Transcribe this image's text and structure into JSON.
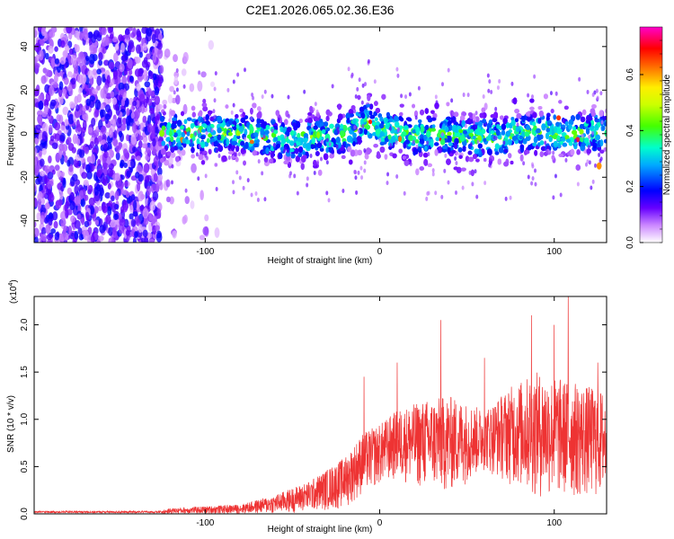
{
  "title": "C2E1.2026.065.02.36.E36",
  "chart_data": [
    {
      "type": "heatmap",
      "xlabel": "Height of straight line (km)",
      "ylabel": "Frequency (Hz)",
      "xlim": [
        -198,
        130
      ],
      "ylim": [
        -50,
        49
      ],
      "xticks": [
        -100,
        0,
        100
      ],
      "yticks": [
        -40,
        -20,
        0,
        20,
        40
      ],
      "colorbar": {
        "label": "Normalized spectral amplitude",
        "range": [
          0,
          0.77
        ],
        "ticks": [
          "0.0",
          "0.2",
          "0.4",
          "0.6"
        ],
        "tick_values": [
          0,
          0.2,
          0.4,
          0.6
        ]
      },
      "description_series": {
        "name": "ridge center frequency (Hz) vs height",
        "x": [
          -125,
          -100,
          -75,
          -55,
          -40,
          -20,
          -10,
          -5,
          0,
          20,
          40,
          55,
          70,
          90,
          110,
          130
        ],
        "y": [
          0,
          0,
          0,
          -3,
          -2,
          0,
          4,
          6,
          2,
          -1,
          0,
          -2,
          -1,
          1,
          0,
          1
        ]
      }
    },
    {
      "type": "line",
      "xlabel": "Height of straight line (km)",
      "ylabel": "SNR (10 * v/v)",
      "yexponent": "(x10^4)",
      "exponent_base": "(x10",
      "exponent_power": "4",
      "exponent_close": ")",
      "xlim": [
        -198,
        130
      ],
      "ylim": [
        0,
        2.3
      ],
      "xticks": [
        -100,
        0,
        100
      ],
      "yticks": [
        "0.0",
        "0.5",
        "1.0",
        "1.5",
        "2.0"
      ],
      "ytick_values": [
        0,
        0.5,
        1.0,
        1.5,
        2.0
      ],
      "color": "#ee3333",
      "envelope": {
        "x": [
          -198,
          -125,
          -120,
          -80,
          -60,
          -40,
          -20,
          -10,
          0,
          10,
          25,
          40,
          60,
          75,
          90,
          110,
          130
        ],
        "max": [
          0.03,
          0.03,
          0.06,
          0.1,
          0.2,
          0.35,
          0.6,
          0.85,
          0.95,
          1.1,
          1.2,
          1.25,
          1.1,
          1.35,
          1.5,
          1.4,
          1.3
        ],
        "min": [
          0.0,
          0.0,
          0.0,
          0.0,
          0.0,
          0.02,
          0.05,
          0.2,
          0.3,
          0.35,
          0.25,
          0.2,
          0.45,
          0.3,
          0.15,
          0.15,
          0.15
        ]
      },
      "peaks": [
        {
          "x": -20,
          "y": 0.55
        },
        {
          "x": -15,
          "y": 0.6
        },
        {
          "x": -9,
          "y": 1.45
        },
        {
          "x": 10,
          "y": 1.6
        },
        {
          "x": 35,
          "y": 2.05
        },
        {
          "x": 60,
          "y": 1.65
        },
        {
          "x": 87,
          "y": 2.1
        },
        {
          "x": 100,
          "y": 2.0
        },
        {
          "x": 108,
          "y": 2.3
        },
        {
          "x": 125,
          "y": 1.6
        }
      ]
    }
  ]
}
